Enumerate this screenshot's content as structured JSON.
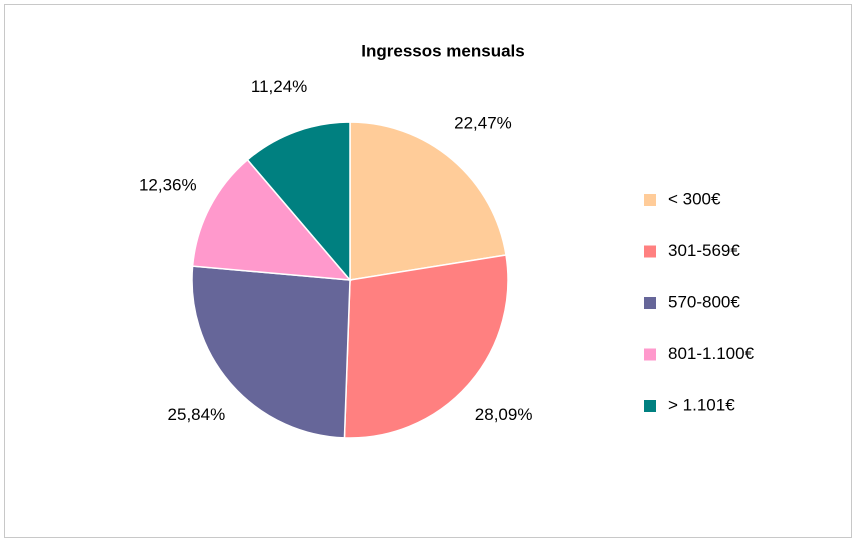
{
  "chart_data": {
    "type": "pie",
    "title": "Ingressos mensuals",
    "categories": [
      "< 300€",
      "301-569€",
      "570-800€",
      "801-1.100€",
      "> 1.101€"
    ],
    "values": [
      22.47,
      28.09,
      25.84,
      12.36,
      11.24
    ],
    "value_labels": [
      "22,47%",
      "28,09%",
      "25,84%",
      "12,36%",
      "11,24%"
    ],
    "colors": [
      "#ffcc99",
      "#ff8080",
      "#666699",
      "#ff99cc",
      "#008080"
    ],
    "legend": "right"
  }
}
